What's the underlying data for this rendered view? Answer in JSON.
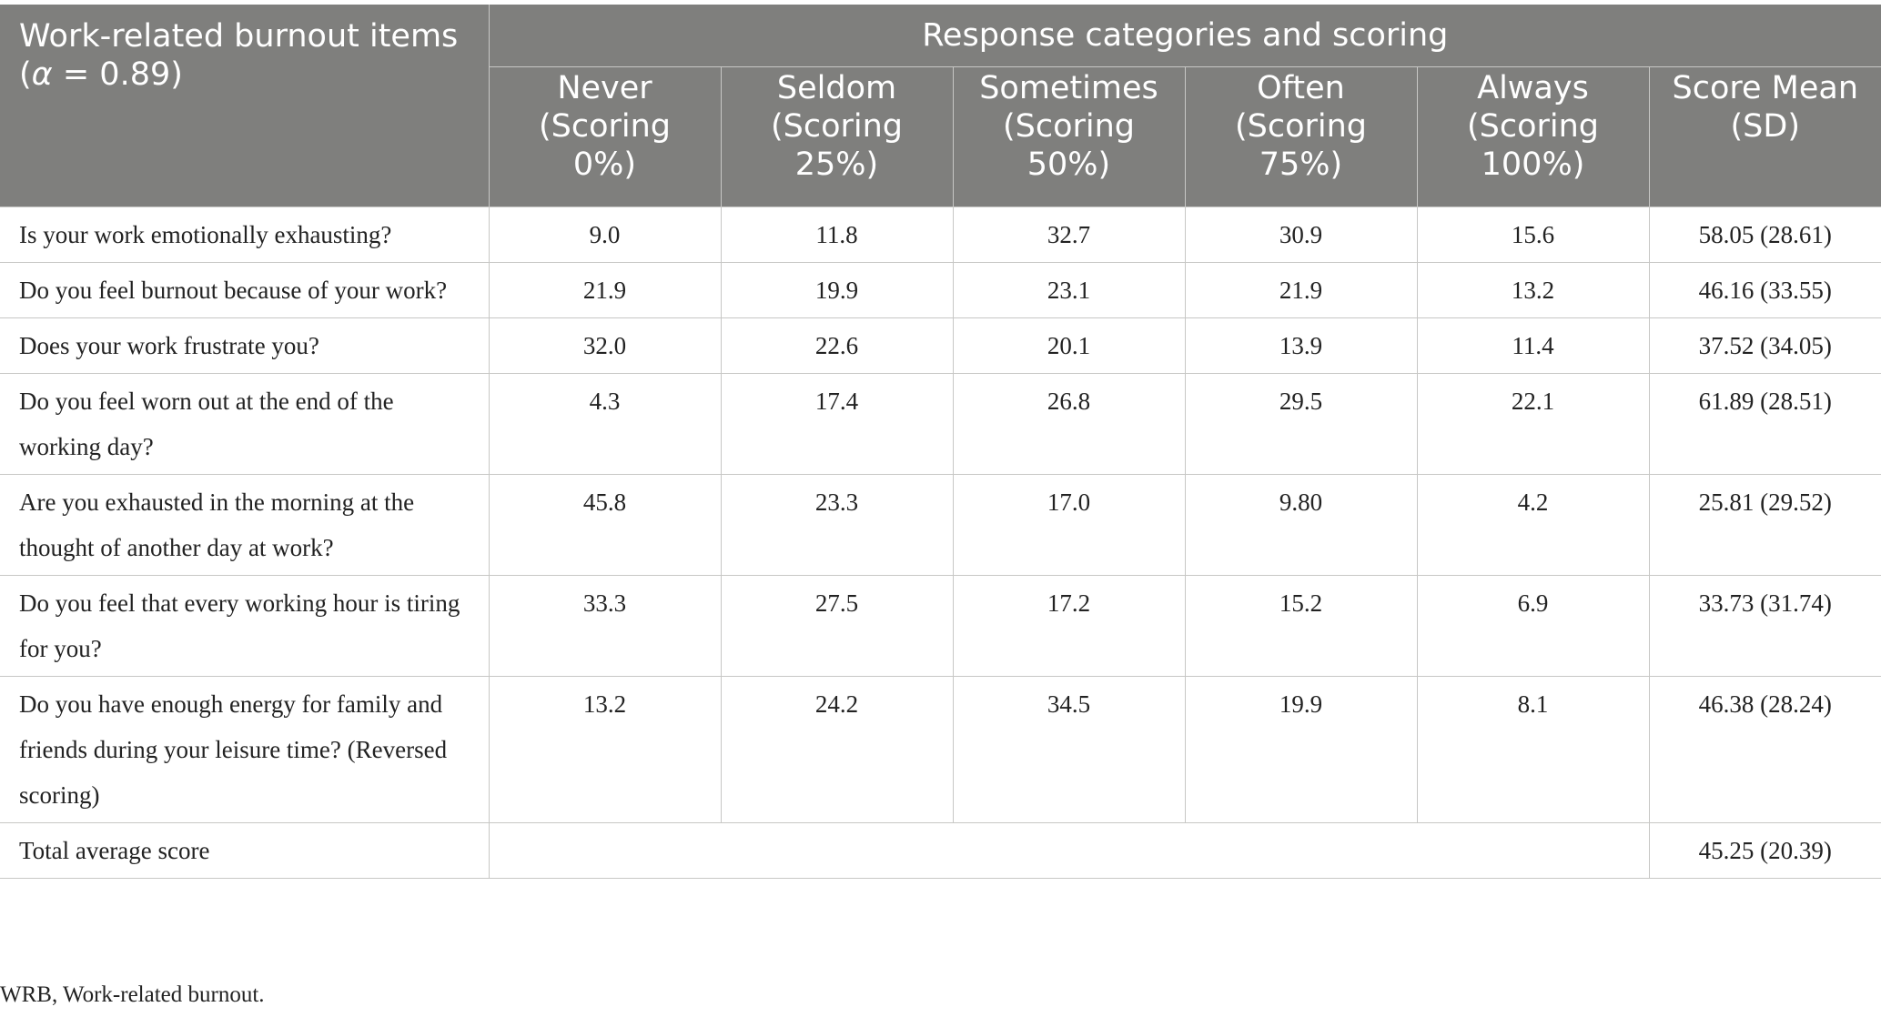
{
  "header": {
    "item_heading_line1": "Work-related burnout items",
    "item_heading_line2_prefix": "(",
    "item_heading_alpha": "α",
    "item_heading_line2_suffix": " = 0.89)",
    "group_heading": "Response categories and scoring",
    "columns": [
      {
        "line1": "Never",
        "line2": "(Scoring",
        "line3": "0%)"
      },
      {
        "line1": "Seldom",
        "line2": "(Scoring",
        "line3": "25%)"
      },
      {
        "line1": "Sometimes",
        "line2": "(Scoring",
        "line3": "50%)"
      },
      {
        "line1": "Often",
        "line2": "(Scoring",
        "line3": "75%)"
      },
      {
        "line1": "Always",
        "line2": "(Scoring",
        "line3": "100%)"
      },
      {
        "line1": "Score Mean",
        "line2": "(SD)",
        "line3": ""
      }
    ]
  },
  "rows": [
    {
      "item": "Is your work emotionally exhausting?",
      "values": [
        "9.0",
        "11.8",
        "32.7",
        "30.9",
        "15.6",
        "58.05 (28.61)"
      ]
    },
    {
      "item": "Do you feel burnout because of your work?",
      "values": [
        "21.9",
        "19.9",
        "23.1",
        "21.9",
        "13.2",
        "46.16 (33.55)"
      ]
    },
    {
      "item": "Does your work frustrate you?",
      "values": [
        "32.0",
        "22.6",
        "20.1",
        "13.9",
        "11.4",
        "37.52 (34.05)"
      ]
    },
    {
      "item": "Do you feel worn out at the end of the working day?",
      "values": [
        "4.3",
        "17.4",
        "26.8",
        "29.5",
        "22.1",
        "61.89 (28.51)"
      ]
    },
    {
      "item": "Are you exhausted in the morning at the thought of another day at work?",
      "values": [
        "45.8",
        "23.3",
        "17.0",
        "9.80",
        "4.2",
        "25.81 (29.52)"
      ]
    },
    {
      "item": "Do you feel that every working hour is tiring for you?",
      "values": [
        "33.3",
        "27.5",
        "17.2",
        "15.2",
        "6.9",
        "33.73 (31.74)"
      ]
    },
    {
      "item": "Do you have enough energy for family and friends during your leisure time? (Reversed scoring)",
      "values": [
        "13.2",
        "24.2",
        "34.5",
        "19.9",
        "8.1",
        "46.38 (28.24)"
      ]
    }
  ],
  "total": {
    "label": "Total average score",
    "value": "45.25 (20.39)"
  },
  "footnote": "WRB, Work-related burnout.",
  "colors": {
    "header_bg": "#7f7f7d",
    "header_text": "#ffffff",
    "grid": "#c7c7c5"
  }
}
